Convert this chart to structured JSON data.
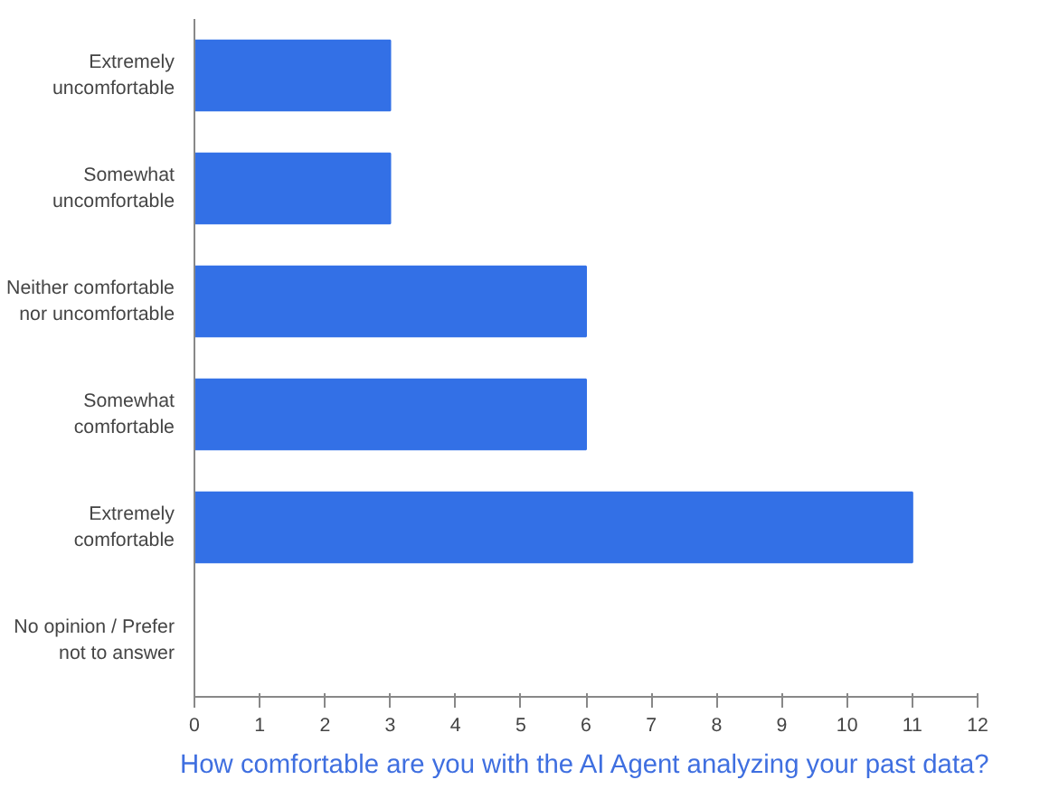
{
  "chart_data": {
    "type": "bar",
    "orientation": "horizontal",
    "title": "How comfortable are you with the AI Agent analyzing your past data?",
    "categories": [
      "Extremely uncomfortable",
      "Somewhat uncomfortable",
      "Neither comfortable nor uncomfortable",
      "Somewhat comfortable",
      "Extremely comfortable",
      "No opinion / Prefer not to answer"
    ],
    "values": [
      3,
      3,
      6,
      6,
      11,
      0
    ],
    "color": "#3370e6",
    "xlim": [
      0,
      12
    ],
    "xticks": [
      0,
      1,
      2,
      3,
      4,
      5,
      6,
      7,
      8,
      9,
      10,
      11,
      12
    ],
    "grid": false
  }
}
